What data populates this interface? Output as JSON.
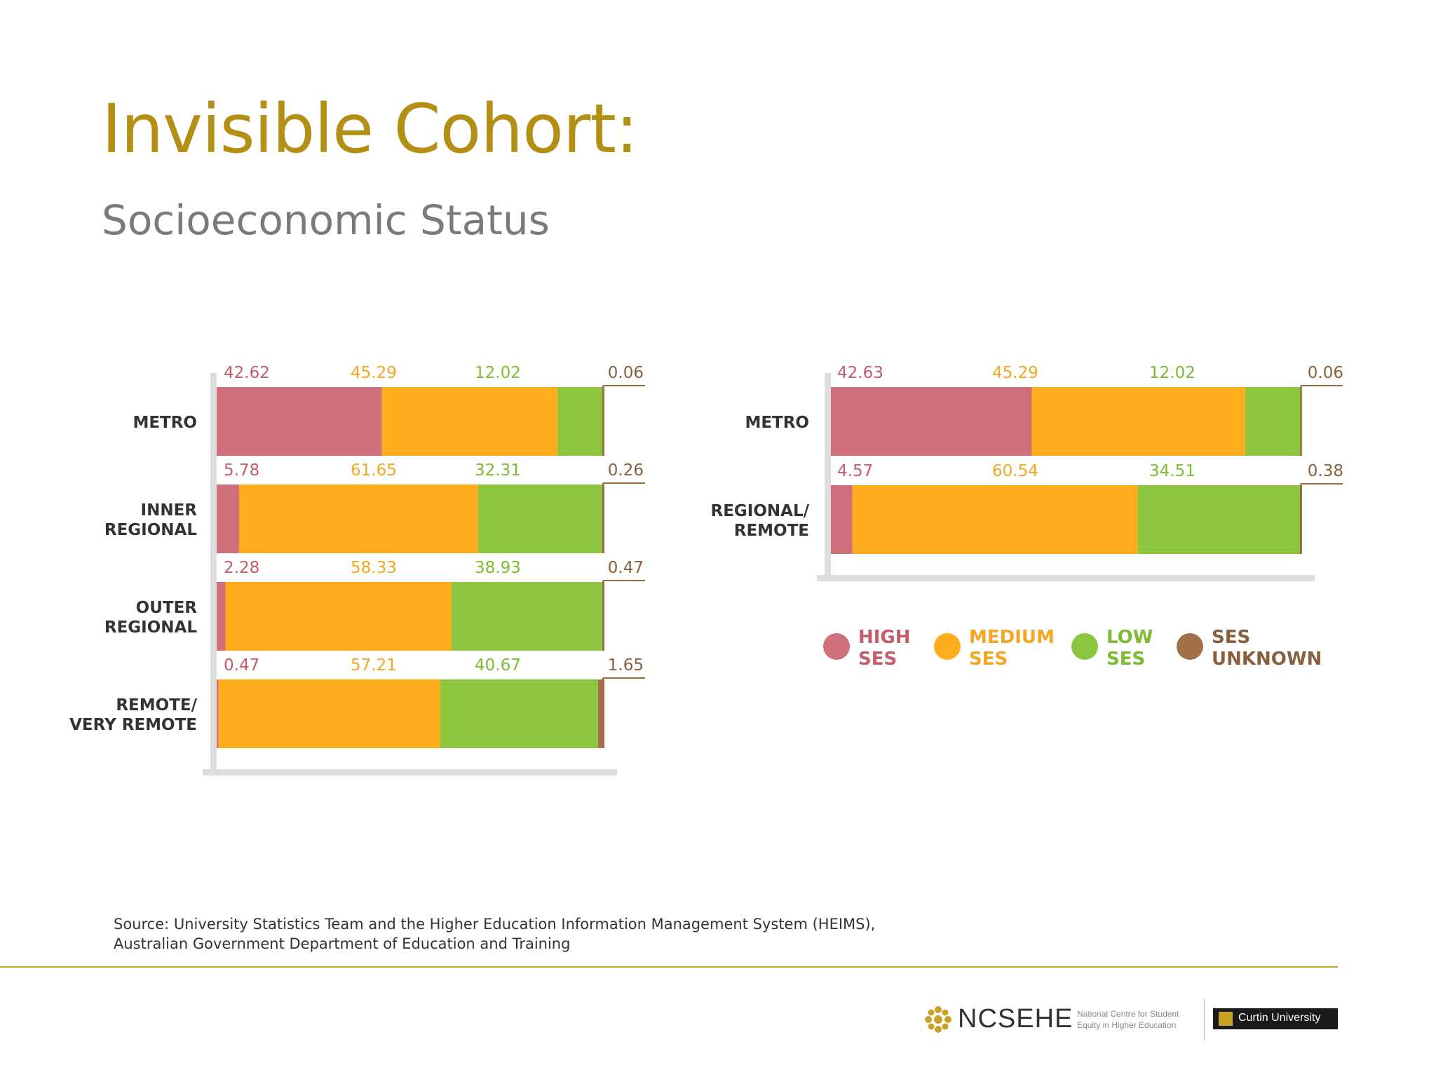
{
  "header": {
    "title": "Invisible Cohort:",
    "subtitle": "Socioeconomic Status"
  },
  "colors": {
    "high": "#CF6F7B",
    "medium": "#FFAD1C",
    "low": "#8CC63E",
    "unknown": "#A0714A",
    "axis": "#dddddd",
    "title": "#B38F14"
  },
  "chart_data": [
    {
      "type": "bar",
      "orientation": "horizontal",
      "stacked": true,
      "categories": [
        "METRO",
        "INNER REGIONAL",
        "OUTER REGIONAL",
        "REMOTE/ VERY REMOTE"
      ],
      "series": [
        {
          "name": "HIGH SES",
          "values": [
            42.62,
            5.78,
            2.28,
            0.47
          ]
        },
        {
          "name": "MEDIUM SES",
          "values": [
            45.29,
            61.65,
            58.33,
            57.21
          ]
        },
        {
          "name": "LOW SES",
          "values": [
            12.02,
            32.31,
            38.93,
            40.67
          ]
        },
        {
          "name": "SES UNKNOWN",
          "values": [
            0.06,
            0.26,
            0.47,
            1.65
          ]
        }
      ],
      "xlim": [
        0,
        100
      ]
    },
    {
      "type": "bar",
      "orientation": "horizontal",
      "stacked": true,
      "categories": [
        "METRO",
        "REGIONAL/ REMOTE"
      ],
      "series": [
        {
          "name": "HIGH SES",
          "values": [
            42.63,
            4.57
          ]
        },
        {
          "name": "MEDIUM SES",
          "values": [
            45.29,
            60.54
          ]
        },
        {
          "name": "LOW SES",
          "values": [
            12.02,
            34.51
          ]
        },
        {
          "name": "SES UNKNOWN",
          "values": [
            0.06,
            0.38
          ]
        }
      ],
      "xlim": [
        0,
        100
      ]
    }
  ],
  "legend": [
    {
      "key": "high",
      "line1": "HIGH",
      "line2": "SES"
    },
    {
      "key": "medium",
      "line1": "MEDIUM",
      "line2": "SES"
    },
    {
      "key": "low",
      "line1": "LOW",
      "line2": "SES"
    },
    {
      "key": "unknown",
      "line1": "SES",
      "line2": "UNKNOWN"
    }
  ],
  "source": {
    "line1": "Source: University Statistics Team and the Higher Education Information Management System (HEIMS),",
    "line2": "Australian Government Department of Education and Training"
  },
  "footer": {
    "org_name": "NCSEHE",
    "org_desc_line1": "National Centre for Student",
    "org_desc_line2": "Equity in Higher Education",
    "partner": "Curtin University"
  }
}
